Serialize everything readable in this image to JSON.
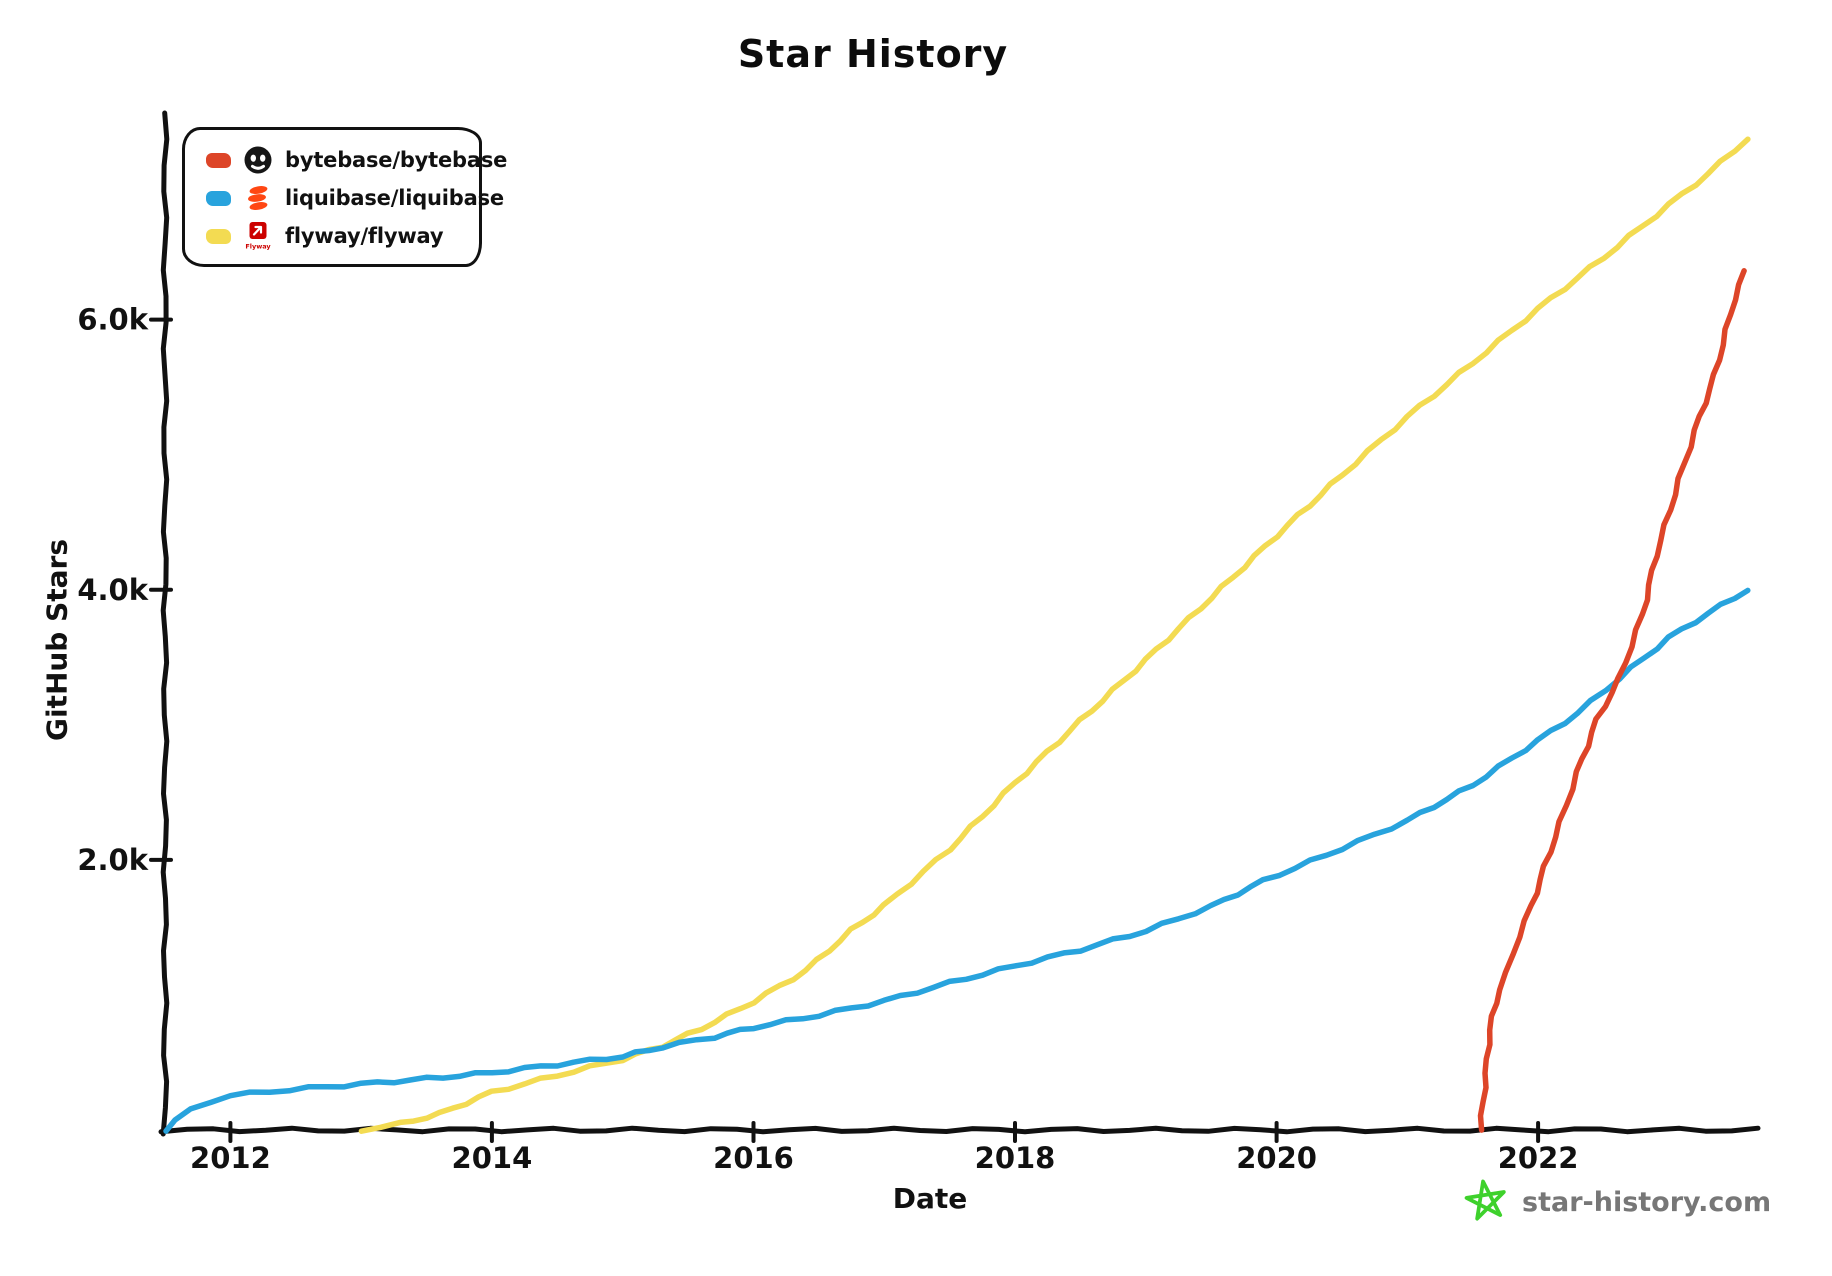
{
  "title": "Star History",
  "legend": {
    "items": [
      {
        "label": "bytebase/bytebase",
        "color": "#dd4528",
        "icon": "bytebase-avatar-icon"
      },
      {
        "label": "liquibase/liquibase",
        "color": "#28a3dd",
        "icon": "liquibase-avatar-icon"
      },
      {
        "label": "flyway/flyway",
        "color": "#f3db52",
        "icon": "flyway-avatar-icon",
        "logo_text": "Flyway"
      }
    ]
  },
  "watermark": {
    "text": "star-history.com"
  },
  "colors": {
    "red": "#dd4528",
    "blue": "#28a3dd",
    "yellow": "#f3db52",
    "axis": "#111111",
    "watermark_text": "#777777",
    "watermark_star": "#3ed12c",
    "liquibase_logo": "#ff4713",
    "flyway_logo": "#cc0200"
  },
  "chart_data": {
    "type": "line",
    "title": "Star History",
    "xlabel": "Date",
    "ylabel": "GitHub Stars",
    "xlim": [
      2011.5,
      2023.62
    ],
    "ylim": [
      0,
      7530
    ],
    "grid": false,
    "legend_position": "top-left",
    "x_ticks": {
      "values": [
        2012,
        2014,
        2016,
        2018,
        2020,
        2022
      ],
      "labels": [
        "2012",
        "2014",
        "2016",
        "2018",
        "2020",
        "2022"
      ]
    },
    "y_ticks": {
      "values": [
        2000,
        4000,
        6000
      ],
      "labels": [
        "2.0k",
        "4.0k",
        "6.0k"
      ]
    },
    "series": [
      {
        "name": "bytebase/bytebase",
        "color": "#dd4528",
        "points": [
          [
            2021.56,
            0
          ],
          [
            2021.6,
            420
          ],
          [
            2021.63,
            740
          ],
          [
            2021.7,
            1040
          ],
          [
            2021.76,
            1160
          ],
          [
            2021.85,
            1430
          ],
          [
            2021.95,
            1660
          ],
          [
            2022.05,
            1950
          ],
          [
            2022.17,
            2280
          ],
          [
            2022.3,
            2650
          ],
          [
            2022.45,
            3040
          ],
          [
            2022.62,
            3340
          ],
          [
            2022.8,
            3820
          ],
          [
            2022.9,
            4250
          ],
          [
            2023.08,
            4820
          ],
          [
            2023.2,
            5180
          ],
          [
            2023.35,
            5590
          ],
          [
            2023.5,
            6150
          ],
          [
            2023.58,
            6360
          ]
        ]
      },
      {
        "name": "liquibase/liquibase",
        "color": "#28a3dd",
        "points": [
          [
            2011.5,
            0
          ],
          [
            2011.58,
            70
          ],
          [
            2011.7,
            150
          ],
          [
            2011.85,
            215
          ],
          [
            2012.0,
            255
          ],
          [
            2012.3,
            285
          ],
          [
            2012.6,
            310
          ],
          [
            2013.0,
            340
          ],
          [
            2013.5,
            380
          ],
          [
            2014.0,
            425
          ],
          [
            2014.5,
            485
          ],
          [
            2015.0,
            545
          ],
          [
            2015.3,
            615
          ],
          [
            2015.7,
            690
          ],
          [
            2016.0,
            760
          ],
          [
            2016.5,
            850
          ],
          [
            2017.0,
            955
          ],
          [
            2017.5,
            1090
          ],
          [
            2018.0,
            1215
          ],
          [
            2018.5,
            1335
          ],
          [
            2019.0,
            1475
          ],
          [
            2019.5,
            1655
          ],
          [
            2019.9,
            1845
          ],
          [
            2020.5,
            2085
          ],
          [
            2021.0,
            2290
          ],
          [
            2021.5,
            2555
          ],
          [
            2022.0,
            2885
          ],
          [
            2022.3,
            3085
          ],
          [
            2022.62,
            3345
          ],
          [
            2023.0,
            3645
          ],
          [
            2023.3,
            3825
          ],
          [
            2023.6,
            4000
          ]
        ]
      },
      {
        "name": "flyway/flyway",
        "color": "#f3db52",
        "points": [
          [
            2013.0,
            0
          ],
          [
            2013.3,
            45
          ],
          [
            2013.6,
            120
          ],
          [
            2014.0,
            280
          ],
          [
            2014.5,
            405
          ],
          [
            2015.0,
            525
          ],
          [
            2015.3,
            622
          ],
          [
            2015.6,
            750
          ],
          [
            2016.0,
            950
          ],
          [
            2016.4,
            1180
          ],
          [
            2016.75,
            1480
          ],
          [
            2017.0,
            1660
          ],
          [
            2017.5,
            2080
          ],
          [
            2018.0,
            2570
          ],
          [
            2018.5,
            3030
          ],
          [
            2019.0,
            3480
          ],
          [
            2019.5,
            3940
          ],
          [
            2020.0,
            4400
          ],
          [
            2020.5,
            4850
          ],
          [
            2021.0,
            5280
          ],
          [
            2021.5,
            5680
          ],
          [
            2022.0,
            6080
          ],
          [
            2022.5,
            6460
          ],
          [
            2023.0,
            6850
          ],
          [
            2023.3,
            7080
          ],
          [
            2023.6,
            7340
          ]
        ]
      }
    ]
  }
}
